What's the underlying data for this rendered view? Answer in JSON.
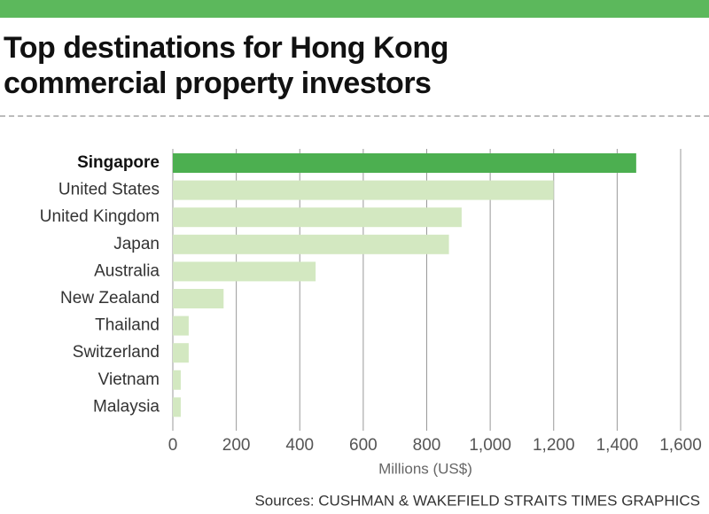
{
  "chart_data": {
    "type": "hbar",
    "title": "Top destinations for Hong Kong commercial property investors",
    "categories": [
      "Singapore",
      "United States",
      "United Kingdom",
      "Japan",
      "Australia",
      "New Zealand",
      "Thailand",
      "Switzerland",
      "Vietnam",
      "Malaysia"
    ],
    "values": [
      1460,
      1200,
      910,
      870,
      450,
      160,
      50,
      50,
      25,
      25
    ],
    "color": "#d3e8c1",
    "colors": [
      "#4caf50",
      "#d3e8c1",
      "#d3e8c1",
      "#d3e8c1",
      "#d3e8c1",
      "#d3e8c1",
      "#d3e8c1",
      "#d3e8c1",
      "#d3e8c1",
      "#d3e8c1"
    ],
    "xlim": [
      0,
      1600
    ],
    "xticks": [
      0,
      200,
      400,
      600,
      800,
      {
        "value": 1000,
        "label": "1,000"
      },
      {
        "value": 1200,
        "label": "1,200"
      },
      {
        "value": 1400,
        "label": "1,400"
      },
      {
        "value": 1600,
        "label": "1,600"
      }
    ],
    "xlabel": "Millions (US$)",
    "grid": true,
    "source": "Sources: CUSHMAN & WAKEFIELD   STRAITS TIMES GRAPHICS"
  }
}
